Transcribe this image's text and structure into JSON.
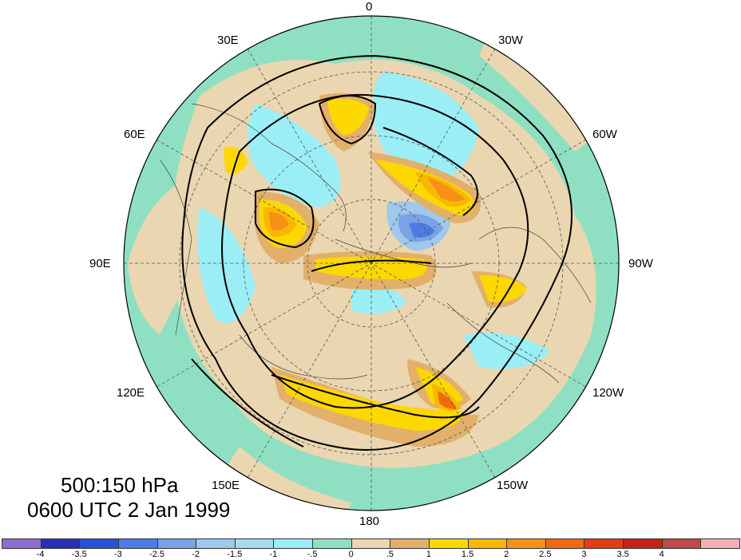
{
  "title": {
    "line1": "500:150 hPa",
    "line2": "0600 UTC 2 Jan 1999"
  },
  "longitude_labels": {
    "top": "0",
    "bottom": "180",
    "left": "90E",
    "right": "90W",
    "upper_left_30": "30E",
    "upper_left_60": "60E",
    "upper_right_30": "30W",
    "upper_right_60": "60W",
    "lower_left_120": "120E",
    "lower_left_150": "150E",
    "lower_right_120": "120W",
    "lower_right_150": "150W"
  },
  "colorbar": {
    "colors": [
      "#8a6fd1",
      "#2a2fb8",
      "#2850d8",
      "#4f7be8",
      "#7aa3e6",
      "#9ec8ec",
      "#a8dceb",
      "#9beef6",
      "#8fe0c2",
      "#ead6b0",
      "#e2b06a",
      "#fcd800",
      "#f8b800",
      "#f89018",
      "#f26a10",
      "#e43c10",
      "#c82218",
      "#c24848",
      "#f8b0b8"
    ],
    "ticks": [
      "-4",
      "-3.5",
      "-3",
      "-2.5",
      "-2",
      "-1.5",
      "-1",
      "-.5",
      "0",
      ".5",
      "1",
      "1.5",
      "2",
      "2.5",
      "3",
      "3.5",
      "4"
    ]
  }
}
